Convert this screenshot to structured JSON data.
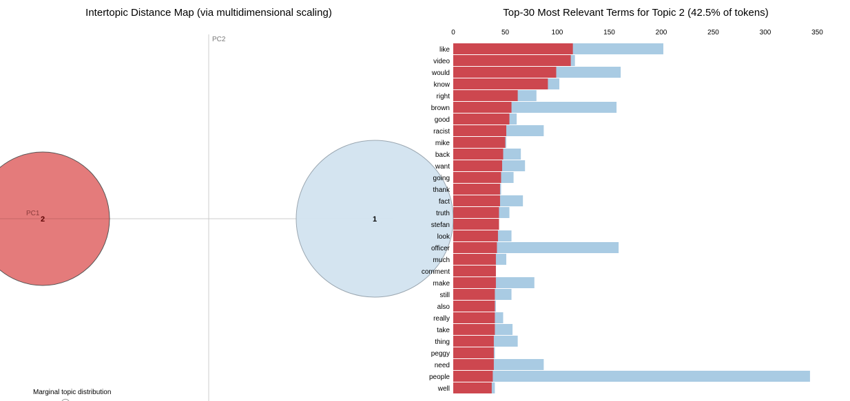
{
  "left_panel": {
    "title": "Intertopic Distance Map (via multidimensional scaling)",
    "axis_x_label": "PC1",
    "axis_y_label": "PC2",
    "marginal_label": "Marginal topic distribution",
    "topics": [
      {
        "id": "1",
        "color": "#d2e3ef",
        "stroke": "#9aa6b0",
        "selected": false
      },
      {
        "id": "2",
        "color": "#e47b7b",
        "stroke": "#555555",
        "selected": true
      }
    ]
  },
  "chart_data": {
    "type": "bar",
    "title": "Top-30 Most Relevant Terms for Topic 2 (42.5% of tokens)",
    "xlim": [
      0,
      350
    ],
    "xticks": [
      0,
      50,
      100,
      150,
      200,
      250,
      300,
      350
    ],
    "grid": false,
    "categories": [
      "like",
      "video",
      "would",
      "know",
      "right",
      "brown",
      "good",
      "racist",
      "mike",
      "back",
      "want",
      "going",
      "thank",
      "fact",
      "truth",
      "stefan",
      "look",
      "officer",
      "much",
      "comment",
      "make",
      "still",
      "also",
      "really",
      "take",
      "thing",
      "peggy",
      "need",
      "people",
      "well"
    ],
    "series": [
      {
        "role": "overall",
        "color": "#a9cbe3",
        "values": [
          202,
          117,
          161,
          102,
          80,
          157,
          61,
          87,
          51,
          65,
          69,
          58,
          46,
          67,
          54,
          44,
          56,
          159,
          51,
          41,
          78,
          56,
          41,
          48,
          57,
          62,
          40,
          87,
          343,
          40
        ]
      },
      {
        "role": "estimated",
        "color": "#cd474f",
        "values": [
          115,
          113,
          99,
          91,
          62,
          56,
          54,
          51,
          50,
          48,
          47,
          46,
          45,
          45,
          44,
          44,
          43,
          42,
          41,
          41,
          41,
          40,
          40,
          40,
          40,
          39,
          39,
          39,
          38,
          37
        ]
      }
    ]
  }
}
